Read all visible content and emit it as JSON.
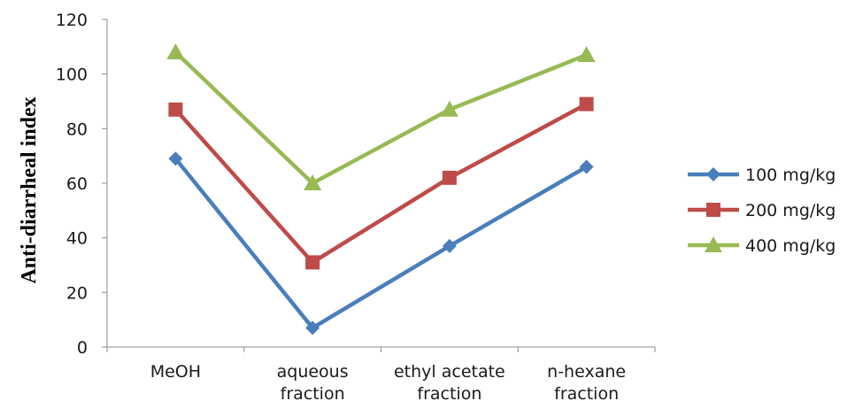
{
  "chart_data": {
    "type": "line",
    "title": "",
    "xlabel": "",
    "ylabel": "Anti-diarrheal index",
    "ylim": [
      0,
      120
    ],
    "yticks": [
      0,
      20,
      40,
      60,
      80,
      100,
      120
    ],
    "grid": false,
    "legend_position": "right",
    "categories": [
      [
        "MeOH"
      ],
      [
        "aqueous",
        "fraction"
      ],
      [
        "ethyl acetate",
        "fraction"
      ],
      [
        "n-hexane",
        "fraction"
      ]
    ],
    "series": [
      {
        "name": "100 mg/kg",
        "values": [
          69,
          7,
          37,
          66
        ],
        "color": "#4a7ebb",
        "marker": "diamond"
      },
      {
        "name": "200 mg/kg",
        "values": [
          87,
          31,
          62,
          89
        ],
        "color": "#be4b48",
        "marker": "square"
      },
      {
        "name": "400 mg/kg",
        "values": [
          108,
          60,
          87,
          107
        ],
        "color": "#98b954",
        "marker": "triangle"
      }
    ]
  }
}
